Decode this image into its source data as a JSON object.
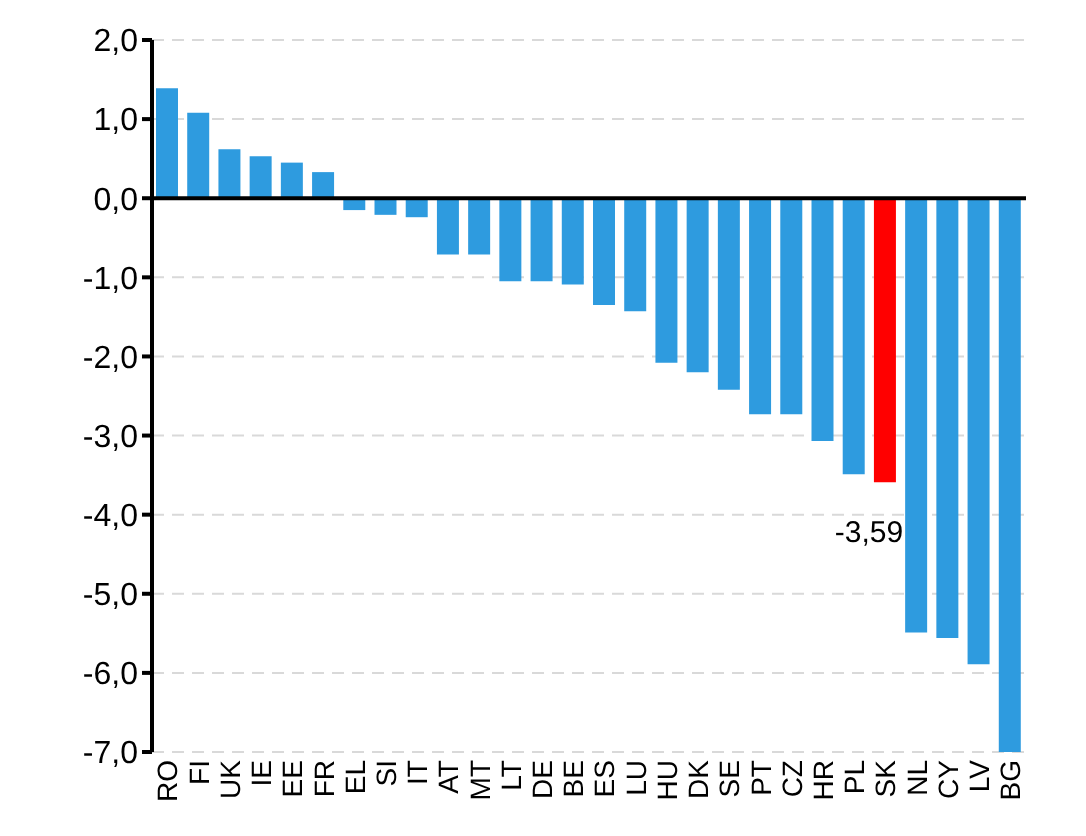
{
  "chart_data": {
    "type": "bar",
    "categories": [
      "RO",
      "FI",
      "UK",
      "IE",
      "EE",
      "FR",
      "EL",
      "SI",
      "IT",
      "AT",
      "MT",
      "LT",
      "DE",
      "BE",
      "ES",
      "LU",
      "HU",
      "DK",
      "SE",
      "PT",
      "CZ",
      "HR",
      "PL",
      "SK",
      "NL",
      "CY",
      "LV",
      "BG"
    ],
    "values": [
      1.39,
      1.08,
      0.62,
      0.53,
      0.45,
      0.33,
      -0.15,
      -0.21,
      -0.24,
      -0.71,
      -0.71,
      -1.05,
      -1.05,
      -1.09,
      -1.35,
      -1.43,
      -2.08,
      -2.2,
      -2.42,
      -2.73,
      -2.73,
      -3.07,
      -3.49,
      -3.59,
      -5.49,
      -5.56,
      -5.89,
      -7.0
    ],
    "colors": [
      "#2e9bdf",
      "#2e9bdf",
      "#2e9bdf",
      "#2e9bdf",
      "#2e9bdf",
      "#2e9bdf",
      "#2e9bdf",
      "#2e9bdf",
      "#2e9bdf",
      "#2e9bdf",
      "#2e9bdf",
      "#2e9bdf",
      "#2e9bdf",
      "#2e9bdf",
      "#2e9bdf",
      "#2e9bdf",
      "#2e9bdf",
      "#2e9bdf",
      "#2e9bdf",
      "#2e9bdf",
      "#2e9bdf",
      "#2e9bdf",
      "#2e9bdf",
      "#ff0000",
      "#2e9bdf",
      "#2e9bdf",
      "#2e9bdf",
      "#2e9bdf"
    ],
    "value_labels": [
      null,
      null,
      null,
      null,
      null,
      null,
      null,
      null,
      null,
      null,
      null,
      null,
      null,
      null,
      null,
      null,
      null,
      null,
      null,
      null,
      null,
      null,
      null,
      "-3,59",
      null,
      null,
      null,
      null
    ],
    "ylim": [
      -7,
      2
    ],
    "yticks": [
      {
        "value": 2,
        "label": "2,0"
      },
      {
        "value": 1,
        "label": "1,0"
      },
      {
        "value": 0,
        "label": "0,0"
      },
      {
        "value": -1,
        "label": "-1,0"
      },
      {
        "value": -2,
        "label": "-2,0"
      },
      {
        "value": -3,
        "label": "-3,0"
      },
      {
        "value": -4,
        "label": "-4,0"
      },
      {
        "value": -5,
        "label": "-5,0"
      },
      {
        "value": -6,
        "label": "-6,0"
      },
      {
        "value": -7,
        "label": "-7,0"
      }
    ],
    "grid": "y"
  }
}
